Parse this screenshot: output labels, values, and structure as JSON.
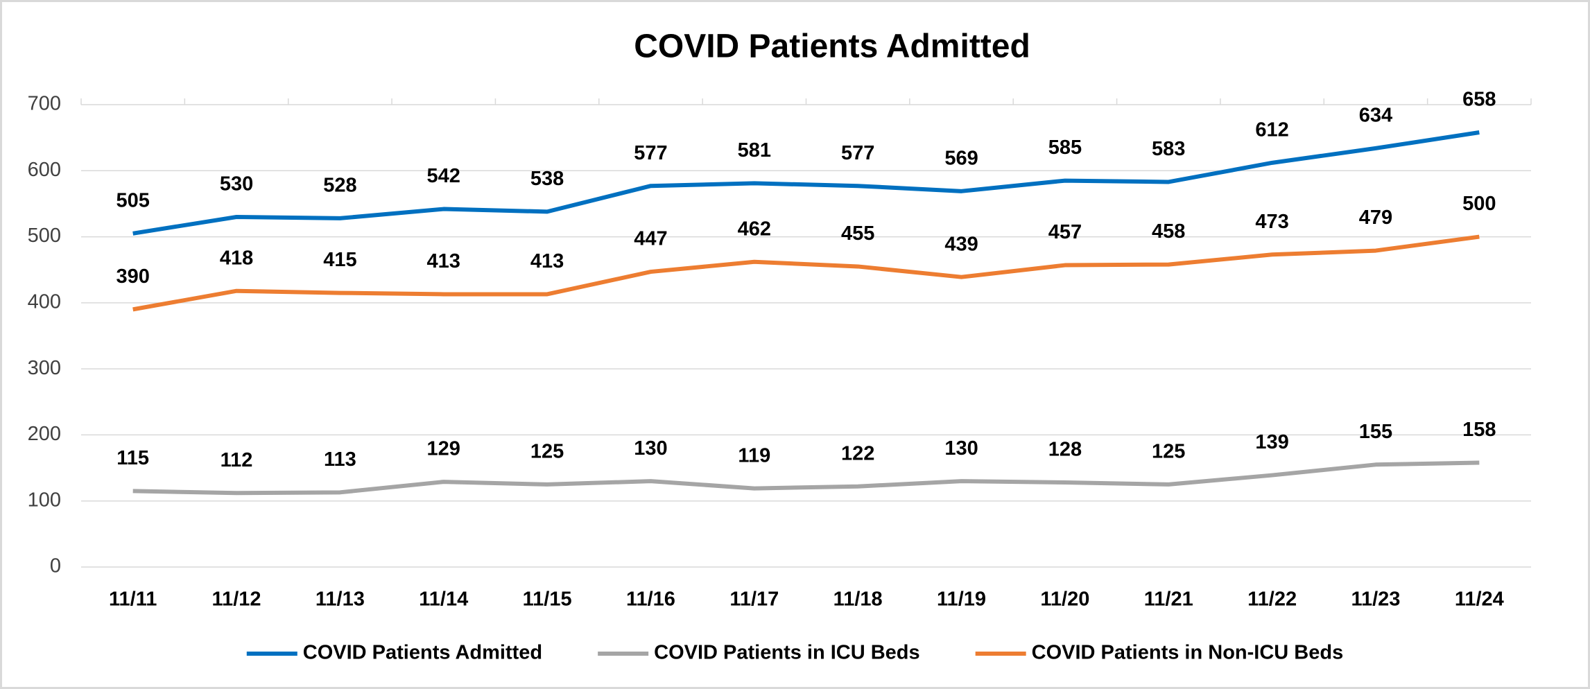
{
  "chart_data": {
    "type": "line",
    "title": "COVID Patients Admitted",
    "categories": [
      "11/11",
      "11/12",
      "11/13",
      "11/14",
      "11/15",
      "11/16",
      "11/17",
      "11/18",
      "11/19",
      "11/20",
      "11/21",
      "11/22",
      "11/23",
      "11/24"
    ],
    "series": [
      {
        "name": "COVID Patients Admitted",
        "color": "#0070c0",
        "values": [
          505,
          530,
          528,
          542,
          538,
          577,
          581,
          577,
          569,
          585,
          583,
          612,
          634,
          658
        ]
      },
      {
        "name": "COVID Patients in ICU Beds",
        "color": "#a5a5a5",
        "values": [
          115,
          112,
          113,
          129,
          125,
          130,
          119,
          122,
          130,
          128,
          125,
          139,
          155,
          158
        ]
      },
      {
        "name": "COVID Patients in Non-ICU Beds",
        "color": "#ed7d31",
        "values": [
          390,
          418,
          415,
          413,
          413,
          447,
          462,
          455,
          439,
          457,
          458,
          473,
          479,
          500
        ]
      }
    ],
    "ylim": [
      0,
      700
    ],
    "yticks": [
      0,
      100,
      200,
      300,
      400,
      500,
      600,
      700
    ],
    "grid": true,
    "legend": "bottom"
  }
}
